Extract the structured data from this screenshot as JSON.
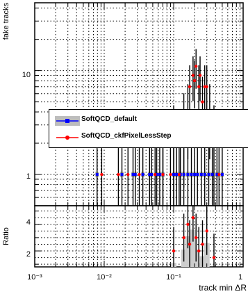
{
  "chart_data": [
    {
      "panel": "main",
      "type": "scatter",
      "ylabel": "fake tracks",
      "xlabel": "",
      "xscale": "log",
      "yscale": "log",
      "xlim": [
        0.001,
        1
      ],
      "ylim": [
        0.5,
        45
      ],
      "yticklabels": [
        "1",
        "10"
      ],
      "grid": true,
      "legend_placement": "middle-right",
      "series": [
        {
          "name": "SoftQCD_default",
          "color": "#0000ff",
          "band_color": "#bdbdbd",
          "x": [
            0.0079,
            0.018,
            0.026,
            0.028,
            0.036,
            0.045,
            0.048,
            0.057,
            0.063,
            0.07,
            0.1,
            0.11,
            0.125,
            0.14,
            0.16,
            0.18,
            0.2,
            0.22,
            0.25,
            0.28,
            0.32,
            0.36,
            0.42,
            0.5
          ],
          "y": [
            1,
            1,
            1,
            1,
            1,
            1,
            1,
            1,
            1,
            1,
            1,
            1,
            1,
            1,
            1,
            1,
            1,
            1,
            1,
            1,
            1,
            1,
            1,
            1
          ]
        },
        {
          "name": "SoftQCD_ckfPixelLessStep",
          "color": "#ff0000",
          "x": [
            0.0092,
            0.016,
            0.022,
            0.032,
            0.054,
            0.07,
            0.09,
            0.1,
            0.12,
            0.14,
            0.16,
            0.17,
            0.19,
            0.2,
            0.21,
            0.23,
            0.24,
            0.26,
            0.28,
            0.3,
            0.33,
            0.38,
            0.45
          ],
          "y": [
            1,
            1,
            1,
            1,
            1,
            1,
            1,
            2,
            1,
            3,
            4,
            7,
            9,
            8,
            11,
            7,
            9,
            5,
            7,
            7,
            4,
            2,
            1
          ]
        }
      ]
    },
    {
      "panel": "ratio",
      "type": "scatter",
      "ylabel": "Ratio",
      "xlabel": "track min ΔR",
      "xscale": "log",
      "xlim": [
        0.001,
        1
      ],
      "ylim": [
        0.8,
        5.4
      ],
      "yticklabels": [
        "2",
        "4"
      ],
      "xticklabels": [
        "10⁻³",
        "10⁻²",
        "10⁻¹",
        "1"
      ],
      "grid": true,
      "series": [
        {
          "name": "SoftQCD_ckfPixelLessStep",
          "color": "#ff0000",
          "band_color": "#cccccc",
          "x": [
            0.1,
            0.14,
            0.16,
            0.17,
            0.19,
            0.21,
            0.23,
            0.26,
            0.3,
            0.38
          ],
          "y": [
            2,
            3,
            4,
            2.5,
            4.5,
            3,
            2,
            2.5,
            3.5,
            1.5
          ]
        }
      ]
    }
  ]
}
